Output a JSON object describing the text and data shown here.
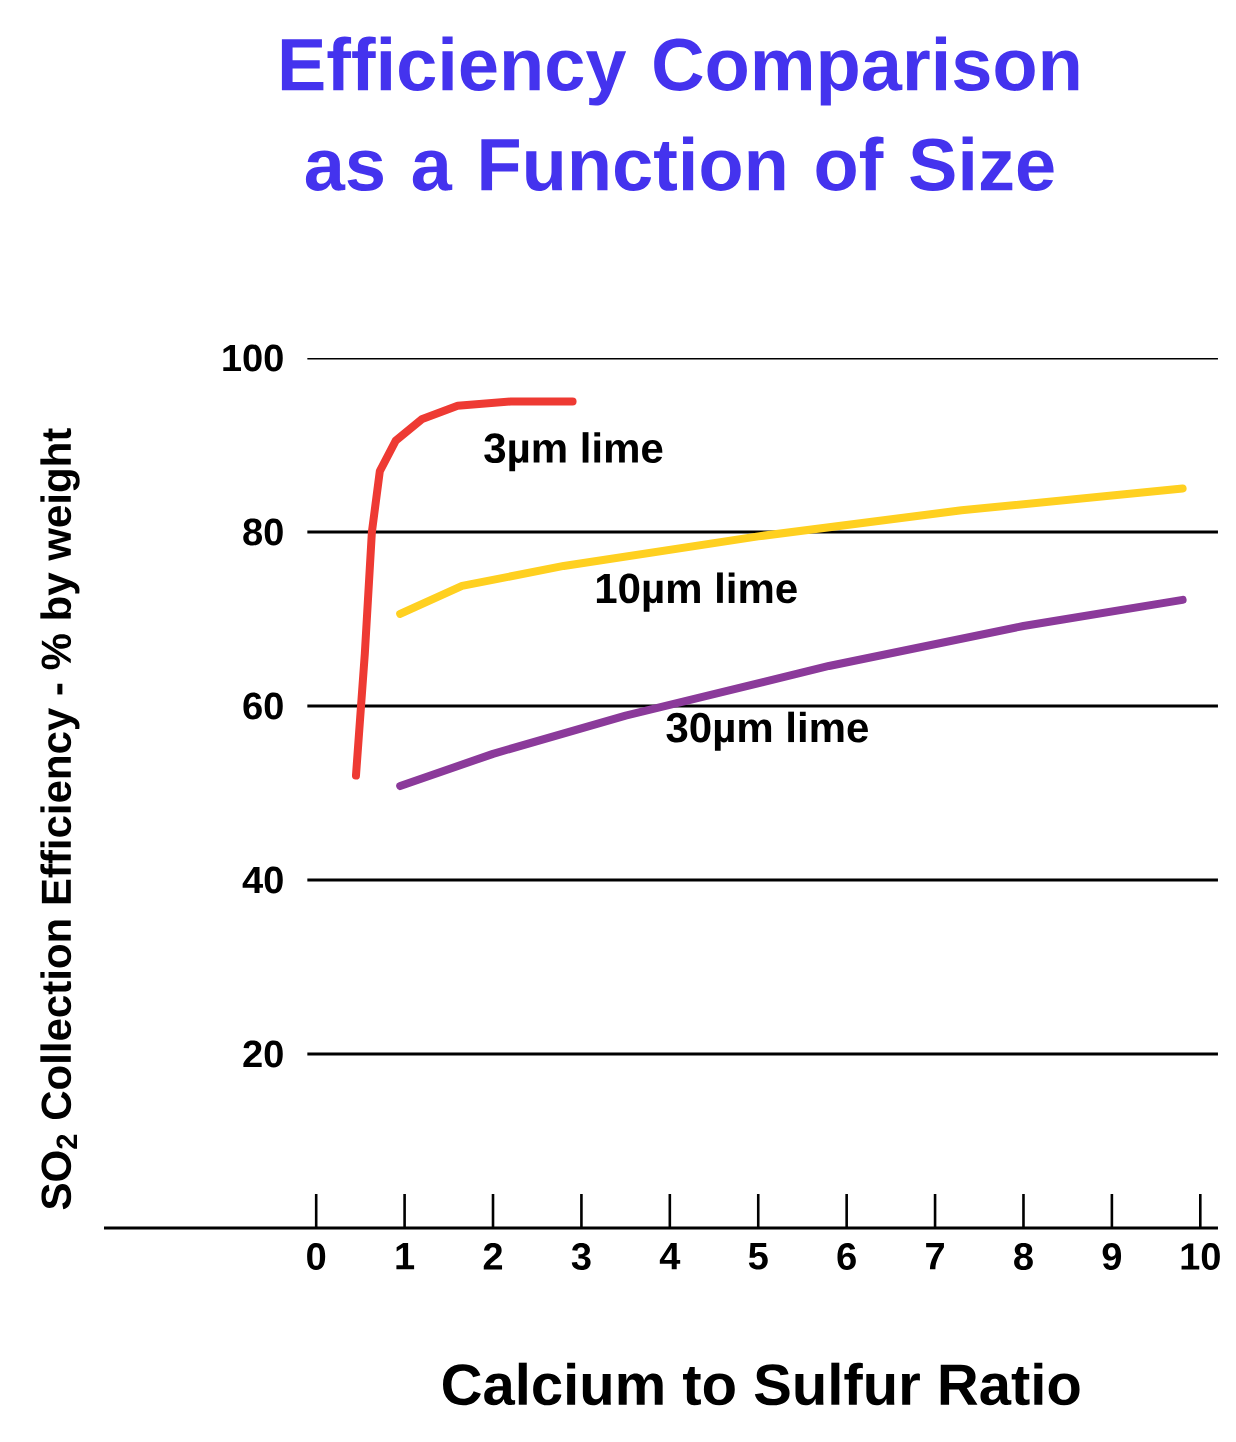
{
  "chart_data": {
    "type": "line",
    "title": "Efficiency Comparison as a Function of Size",
    "xlabel": "Calcium to Sulfur Ratio",
    "ylabel": "SO$_{2}$ Collection Efficiency   -   % by weight",
    "xlim": [
      -2.4,
      10.2
    ],
    "ylim": [
      0,
      100
    ],
    "xticks": [
      0,
      1,
      2,
      3,
      4,
      5,
      6,
      7,
      8,
      9,
      10
    ],
    "yticks": [
      20,
      40,
      60,
      80,
      100
    ],
    "grid": "y",
    "series": [
      {
        "name": "3µm lime",
        "color": "#ee3a33",
        "x": [
          0.45,
          0.55,
          0.63,
          0.72,
          0.9,
          1.2,
          1.6,
          2.2,
          2.9
        ],
        "values": [
          52,
          66,
          80,
          87,
          90.5,
          93,
          94.5,
          95,
          95
        ]
      },
      {
        "name": "10µm lime",
        "color": "#ffd020",
        "x": [
          0.95,
          1.65,
          2.8,
          5.0,
          7.3,
          9.8
        ],
        "values": [
          70.6,
          73.8,
          76.1,
          79.5,
          82.5,
          85
        ]
      },
      {
        "name": "30µm lime",
        "color": "#8b3a9a",
        "x": [
          0.95,
          2.0,
          3.5,
          5.8,
          8.0,
          9.8
        ],
        "values": [
          50.8,
          54.5,
          58.9,
          64.6,
          69.2,
          72.2
        ]
      }
    ]
  }
}
